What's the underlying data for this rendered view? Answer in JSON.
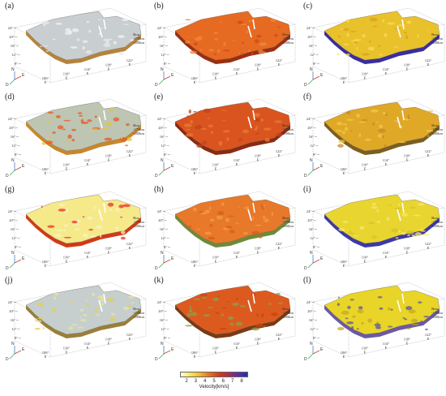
{
  "panels": [
    {
      "label": "(a)",
      "top_color": "#c9ced0",
      "side_color": "#b5833d",
      "accent": "#e8e8e8",
      "speckle": "#f2f2f2"
    },
    {
      "label": "(b)",
      "top_color": "#e66a22",
      "side_color": "#9a2f12",
      "accent": "#d14b18",
      "speckle": "#f08a3a"
    },
    {
      "label": "(c)",
      "top_color": "#e9c12b",
      "side_color": "#3a2f9b",
      "accent": "#d7a21e",
      "speckle": "#f5da5a"
    },
    {
      "label": "(d)",
      "top_color": "#bec6b3",
      "side_color": "#c9872b",
      "accent": "#e4c43a",
      "speckle": "#e85a25"
    },
    {
      "label": "(e)",
      "top_color": "#d9541f",
      "side_color": "#8a2a10",
      "accent": "#c0441a",
      "speckle": "#eb7a33"
    },
    {
      "label": "(f)",
      "top_color": "#e0a827",
      "side_color": "#7a5f20",
      "accent": "#c98a22",
      "speckle": "#f0c94a"
    },
    {
      "label": "(g)",
      "top_color": "#f6e98a",
      "side_color": "#d13a17",
      "accent": "#e8322a",
      "speckle": "#f7f3c0"
    },
    {
      "label": "(h)",
      "top_color": "#e8782a",
      "side_color": "#6e8a3a",
      "accent": "#d45d1f",
      "speckle": "#f29c46"
    },
    {
      "label": "(i)",
      "top_color": "#e8d530",
      "side_color": "#3d3aa5",
      "accent": "#d9c31f",
      "speckle": "#f6ea6a"
    },
    {
      "label": "(j)",
      "top_color": "#c6cfcd",
      "side_color": "#9a7e3a",
      "accent": "#e4d245",
      "speckle": "#e8e3a3"
    },
    {
      "label": "(k)",
      "top_color": "#dd5a1f",
      "side_color": "#7a3a14",
      "accent": "#c84415",
      "speckle": "#8ca04a"
    },
    {
      "label": "(l)",
      "top_color": "#e9d428",
      "side_color": "#6b5aa0",
      "accent": "#c6a820",
      "speckle": "#5c5a9a"
    }
  ],
  "axes": {
    "lat_ticks": [
      "24°",
      "20°",
      "16°",
      "12°",
      "8°"
    ],
    "lon_ticks": [
      "106°",
      "110°",
      "114°",
      "118°",
      "122°"
    ],
    "lon_unit": "E",
    "depth_labels": [
      "0km",
      "-175km",
      "-200km"
    ],
    "orientation": {
      "north": "N",
      "east": "E",
      "down": "D"
    }
  },
  "colorbar": {
    "title": "Velocity[km/s]",
    "ticks": [
      "2",
      "3",
      "4",
      "5",
      "6",
      "7",
      "8"
    ],
    "colors": [
      "#fffde0",
      "#f6e65a",
      "#f2b82c",
      "#e8701f",
      "#d23b18",
      "#b22a4a",
      "#5a2fa0",
      "#1f2fa8"
    ]
  }
}
